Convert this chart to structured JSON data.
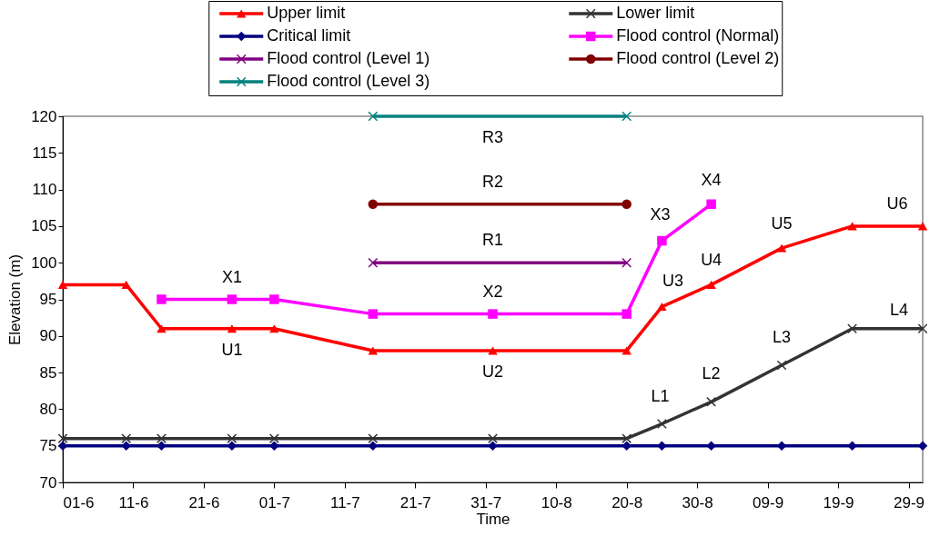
{
  "chart_data": {
    "type": "line",
    "xlabel": "Time",
    "ylabel": "Elevation (m)",
    "legend": "top",
    "xlim": [
      "--06-01",
      "--10-01"
    ],
    "ylim": [
      70,
      120
    ],
    "xticks": [
      {
        "value": "--06-01",
        "label": "01-6"
      },
      {
        "value": "--06-11",
        "label": "11-6"
      },
      {
        "value": "--06-21",
        "label": "21-6"
      },
      {
        "value": "--07-01",
        "label": "01-7"
      },
      {
        "value": "--07-11",
        "label": "11-7"
      },
      {
        "value": "--07-21",
        "label": "21-7"
      },
      {
        "value": "--07-31",
        "label": "31-7"
      },
      {
        "value": "--08-10",
        "label": "10-8"
      },
      {
        "value": "--08-20",
        "label": "20-8"
      },
      {
        "value": "--08-30",
        "label": "30-8"
      },
      {
        "value": "--09-09",
        "label": "09-9"
      },
      {
        "value": "--09-19",
        "label": "19-9"
      },
      {
        "value": "--09-29",
        "label": "29-9"
      }
    ],
    "yticks": [
      70,
      75,
      80,
      85,
      90,
      95,
      100,
      105,
      110,
      115,
      120
    ],
    "series": [
      {
        "name": "Upper limit",
        "color": "#ff0000",
        "marker": "triangle",
        "x": [
          "--06-01",
          "--06-10",
          "--06-15",
          "--06-25",
          "--07-01",
          "--07-15",
          "--08-01",
          "--08-20",
          "--08-25",
          "--09-01",
          "--09-11",
          "--09-21",
          "--10-01"
        ],
        "values": [
          97,
          97,
          91,
          91,
          91,
          88,
          88,
          88,
          94,
          97,
          102,
          105,
          105
        ]
      },
      {
        "name": "Lower limit",
        "color": "#333333",
        "marker": "cross",
        "x": [
          "--06-01",
          "--06-10",
          "--06-15",
          "--06-25",
          "--07-01",
          "--07-15",
          "--08-01",
          "--08-20",
          "--08-25",
          "--09-01",
          "--09-11",
          "--09-21",
          "--10-01"
        ],
        "values": [
          76,
          76,
          76,
          76,
          76,
          76,
          76,
          76,
          78,
          81,
          86,
          91,
          91
        ]
      },
      {
        "name": "Critical limit",
        "color": "#000080",
        "marker": "diamond",
        "x": [
          "--06-01",
          "--06-10",
          "--06-15",
          "--06-25",
          "--07-01",
          "--07-15",
          "--08-01",
          "--08-20",
          "--08-25",
          "--09-01",
          "--09-11",
          "--09-21",
          "--10-01"
        ],
        "values": [
          75,
          75,
          75,
          75,
          75,
          75,
          75,
          75,
          75,
          75,
          75,
          75,
          75
        ]
      },
      {
        "name": "Flood control (Normal)",
        "color": "#ff00ff",
        "marker": "square",
        "x": [
          "--06-15",
          "--06-25",
          "--07-01",
          "--07-15",
          "--08-01",
          "--08-20",
          "--08-25",
          "--09-01"
        ],
        "values": [
          95,
          95,
          95,
          93,
          93,
          93,
          103,
          108
        ]
      },
      {
        "name": "Flood control (Level 1)",
        "color": "#800080",
        "marker": "cross",
        "x": [
          "--07-15",
          "--08-20"
        ],
        "values": [
          100,
          100
        ]
      },
      {
        "name": "Flood control (Level 2)",
        "color": "#800000",
        "marker": "circle",
        "x": [
          "--07-15",
          "--08-20"
        ],
        "values": [
          108,
          108
        ]
      },
      {
        "name": "Flood control (Level 3)",
        "color": "#008080",
        "marker": "cross",
        "x": [
          "--07-15",
          "--08-20"
        ],
        "values": [
          120,
          120
        ]
      }
    ],
    "annotations": [
      {
        "text": "X1",
        "x": "--06-25",
        "y": 95
      },
      {
        "text": "U1",
        "x": "--06-25",
        "y": 91
      },
      {
        "text": "X2",
        "x": "--08-01",
        "y": 93
      },
      {
        "text": "U2",
        "x": "--08-01",
        "y": 88
      },
      {
        "text": "R1",
        "x": "--08-01",
        "y": 100
      },
      {
        "text": "R2",
        "x": "--08-01",
        "y": 108
      },
      {
        "text": "R3",
        "x": "--08-01",
        "y": 120
      },
      {
        "text": "X3",
        "x": "--08-25",
        "y": 103
      },
      {
        "text": "X4",
        "x": "--09-01",
        "y": 108
      },
      {
        "text": "U3",
        "x": "--08-25",
        "y": 94
      },
      {
        "text": "U4",
        "x": "--09-01",
        "y": 97
      },
      {
        "text": "U5",
        "x": "--09-11",
        "y": 102
      },
      {
        "text": "U6",
        "x": "--10-01",
        "y": 105
      },
      {
        "text": "L1",
        "x": "--08-25",
        "y": 78
      },
      {
        "text": "L2",
        "x": "--09-01",
        "y": 81
      },
      {
        "text": "L3",
        "x": "--09-11",
        "y": 86
      },
      {
        "text": "L4",
        "x": "--10-01",
        "y": 91
      }
    ]
  }
}
